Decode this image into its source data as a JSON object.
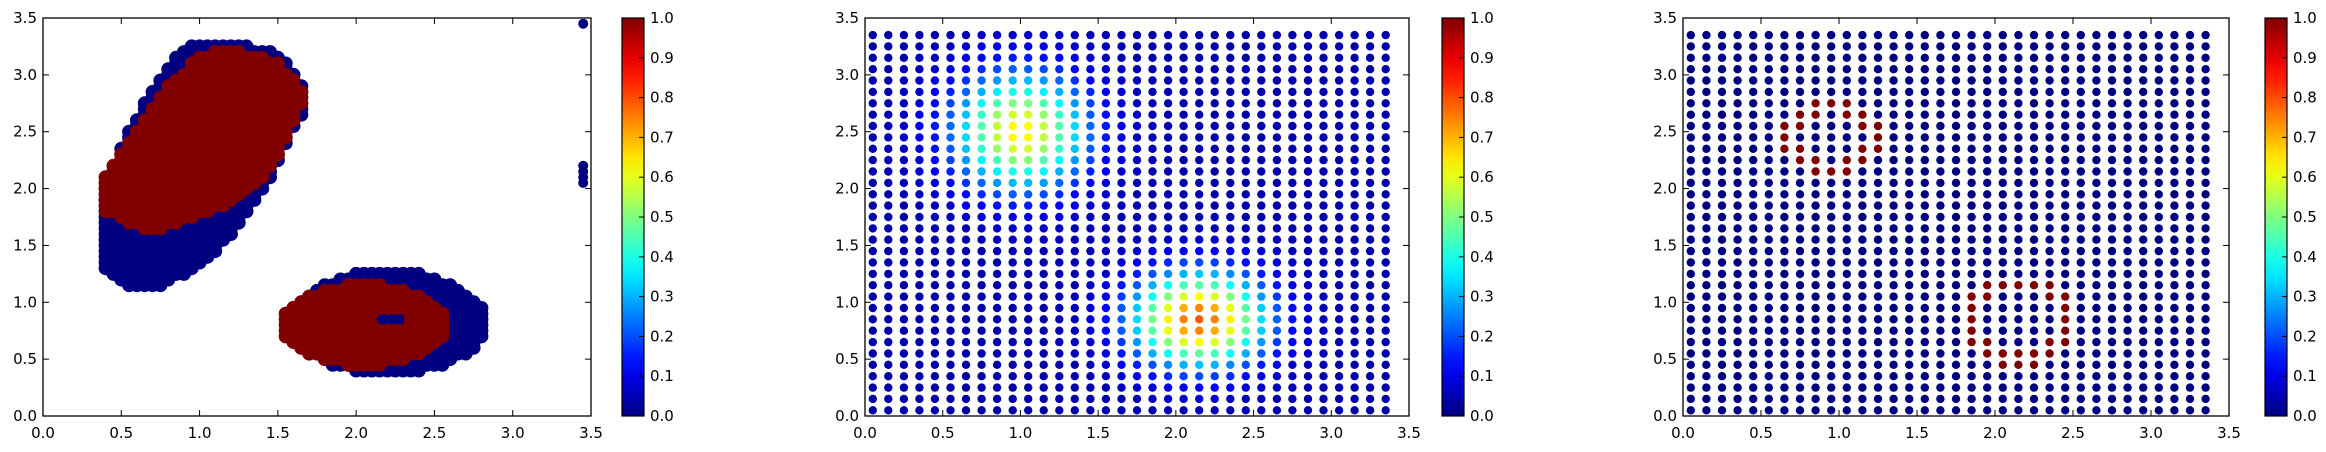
{
  "chart_data": [
    {
      "type": "scatter",
      "title": "",
      "xlabel": "",
      "ylabel": "",
      "xlim": [
        0.0,
        3.5
      ],
      "ylim": [
        0.0,
        3.5
      ],
      "xticks": [
        "0.0",
        "0.5",
        "1.0",
        "1.5",
        "2.0",
        "2.5",
        "3.0",
        "3.5"
      ],
      "yticks": [
        "0.0",
        "0.5",
        "1.0",
        "1.5",
        "2.0",
        "2.5",
        "3.0",
        "3.5"
      ],
      "colorbar": {
        "range": [
          0.0,
          1.0
        ],
        "colormap": "jet",
        "ticks": [
          "0.0",
          "0.1",
          "0.2",
          "0.3",
          "0.4",
          "0.5",
          "0.6",
          "0.7",
          "0.8",
          "0.9",
          "1.0"
        ]
      },
      "grid": false,
      "series": [
        {
          "value": 0.0,
          "blobs": [
            {
              "points": [
                [
                  0.5,
                  1.5
                ],
                [
                  0.6,
                  1.85
                ],
                [
                  0.75,
                  2.35
                ],
                [
                  0.9,
                  2.75
                ],
                [
                  1.05,
                  3.05
                ],
                [
                  1.35,
                  3.0
                ],
                [
                  1.45,
                  2.8
                ],
                [
                  1.2,
                  2.1
                ],
                [
                  0.9,
                  1.55
                ],
                [
                  0.65,
                  1.35
                ]
              ],
              "thickness": 0.24
            },
            {
              "ring": {
                "cx": 2.2,
                "cy": 0.82,
                "rx": 0.5,
                "ry": 0.36
              },
              "thickness": 0.26
            }
          ],
          "extra_points": [
            [
              3.45,
              3.45
            ],
            [
              3.45,
              2.2
            ],
            [
              3.45,
              2.15
            ],
            [
              3.45,
              2.1
            ],
            [
              3.45,
              2.05
            ]
          ]
        },
        {
          "value": 1.0,
          "blobs": [
            {
              "points": [
                [
                  0.55,
                  1.95
                ],
                [
                  0.75,
                  2.35
                ],
                [
                  0.95,
                  2.75
                ],
                [
                  1.15,
                  3.0
                ],
                [
                  1.35,
                  2.95
                ],
                [
                  1.45,
                  2.8
                ],
                [
                  1.25,
                  2.25
                ],
                [
                  1.0,
                  2.0
                ],
                [
                  0.7,
                  1.85
                ]
              ],
              "thickness": 0.22
            },
            {
              "ring": {
                "cx": 2.05,
                "cy": 0.8,
                "rx": 0.45,
                "ry": 0.3
              },
              "thickness": 0.2,
              "hole": {
                "cx": 2.22,
                "cy": 0.85,
                "rx": 0.12,
                "ry": 0.1
              }
            }
          ]
        }
      ]
    },
    {
      "type": "scatter",
      "title": "",
      "xlabel": "",
      "ylabel": "",
      "xlim": [
        0.0,
        3.5
      ],
      "ylim": [
        0.0,
        3.5
      ],
      "xticks": [
        "0.0",
        "0.5",
        "1.0",
        "1.5",
        "2.0",
        "2.5",
        "3.0",
        "3.5"
      ],
      "yticks": [
        "0.0",
        "0.5",
        "1.0",
        "1.5",
        "2.0",
        "2.5",
        "3.0",
        "3.5"
      ],
      "colorbar": {
        "range": [
          0.0,
          1.0
        ],
        "colormap": "jet",
        "ticks": [
          "0.0",
          "0.1",
          "0.2",
          "0.3",
          "0.4",
          "0.5",
          "0.6",
          "0.7",
          "0.8",
          "0.9",
          "1.0"
        ]
      },
      "grid": false,
      "grid_points": {
        "start": 0.05,
        "step": 0.1,
        "count": 34
      },
      "field": [
        {
          "cx": 1.0,
          "cy": 2.5,
          "sx": 0.42,
          "sy": 0.5,
          "peak": 0.6
        },
        {
          "cx": 2.15,
          "cy": 0.85,
          "sx": 0.42,
          "sy": 0.4,
          "peak": 0.75
        }
      ]
    },
    {
      "type": "scatter",
      "title": "",
      "xlabel": "",
      "ylabel": "",
      "xlim": [
        0.0,
        3.5
      ],
      "ylim": [
        0.0,
        3.5
      ],
      "xticks": [
        "0.0",
        "0.5",
        "1.0",
        "1.5",
        "2.0",
        "2.5",
        "3.0",
        "3.5"
      ],
      "yticks": [
        "0.0",
        "0.5",
        "1.0",
        "1.5",
        "2.0",
        "2.5",
        "3.0",
        "3.5"
      ],
      "colorbar": {
        "range": [
          0.0,
          1.0
        ],
        "colormap": "jet",
        "ticks": [
          "0.0",
          "0.1",
          "0.2",
          "0.3",
          "0.4",
          "0.5",
          "0.6",
          "0.7",
          "0.8",
          "0.9",
          "1.0"
        ]
      },
      "grid": false,
      "grid_points": {
        "start": 0.05,
        "step": 0.1,
        "count": 34
      },
      "rings": [
        {
          "cx": 0.95,
          "cy": 2.45,
          "r": 0.28,
          "value": 1.0
        },
        {
          "cx": 2.15,
          "cy": 0.82,
          "r": 0.33,
          "value": 1.0
        }
      ]
    }
  ]
}
